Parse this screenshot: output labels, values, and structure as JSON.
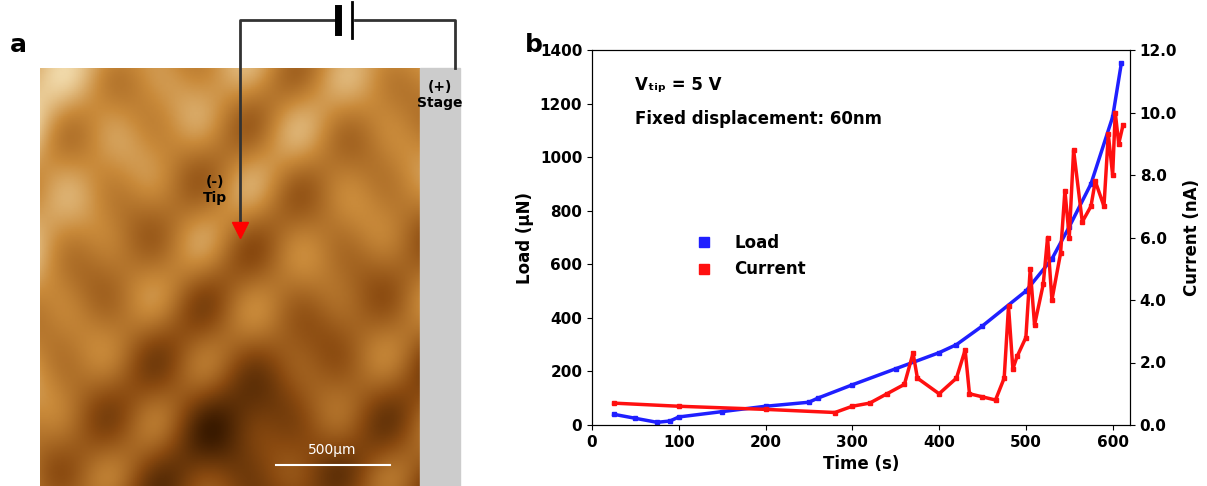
{
  "image_panel": {
    "panel_label": "a",
    "tip_polarity": "(-)",
    "tip_label": "Tip",
    "stage_polarity": "(+)",
    "stage_label": "Stage",
    "scale_bar": "500μm"
  },
  "chart_data": {
    "type": "line",
    "panel_label": "b",
    "annotations": [
      "Vₜᵢₚ = 5 V",
      "Fixed displacement: 60nm"
    ],
    "x_label": "Time (s)",
    "y_label": "Load (μN)",
    "y2_label": "Current (nA)",
    "xlim": [
      0,
      620
    ],
    "xticks": [
      0,
      100,
      200,
      300,
      400,
      500,
      600
    ],
    "ylim": [
      0,
      1400
    ],
    "yticks": [
      0,
      200,
      400,
      600,
      800,
      1000,
      1200,
      1400
    ],
    "y2lim": [
      0,
      12
    ],
    "y2ticks": [
      {
        "value": 0,
        "label": "0.0"
      },
      {
        "value": 2,
        "label": "2.0"
      },
      {
        "value": 4,
        "label": "4.0"
      },
      {
        "value": 6,
        "label": "6.0"
      },
      {
        "value": 8,
        "label": "8.0"
      },
      {
        "value": 10,
        "label": "10.0"
      },
      {
        "value": 12,
        "label": "12.0"
      }
    ],
    "legend": "center left",
    "series": [
      {
        "name": "Load",
        "color": "#1f1fff",
        "marker": "s",
        "axis": "y",
        "x": [
          25,
          50,
          75,
          90,
          100,
          150,
          200,
          250,
          260,
          300,
          350,
          400,
          420,
          450,
          500,
          530,
          550,
          575,
          600,
          610
        ],
        "values": [
          40,
          25,
          10,
          15,
          30,
          50,
          70,
          85,
          100,
          150,
          210,
          270,
          300,
          370,
          500,
          620,
          740,
          900,
          1150,
          1350
        ]
      },
      {
        "name": "Current",
        "color": "#ff1010",
        "marker": "s",
        "axis": "y2",
        "x": [
          25,
          100,
          200,
          280,
          300,
          320,
          340,
          360,
          370,
          375,
          400,
          420,
          430,
          435,
          450,
          465,
          475,
          480,
          485,
          490,
          500,
          505,
          510,
          520,
          525,
          530,
          540,
          545,
          550,
          555,
          565,
          575,
          580,
          590,
          595,
          600,
          603,
          607,
          612
        ],
        "values": [
          0.7,
          0.6,
          0.5,
          0.4,
          0.6,
          0.7,
          1.0,
          1.3,
          2.3,
          1.5,
          1.0,
          1.5,
          2.4,
          1.0,
          0.9,
          0.8,
          1.5,
          3.8,
          1.8,
          2.2,
          2.8,
          5.0,
          3.2,
          4.5,
          6.0,
          4.0,
          5.5,
          7.5,
          6.0,
          8.8,
          6.5,
          7.0,
          7.8,
          7.0,
          9.3,
          8.0,
          10.0,
          9.0,
          9.6
        ]
      }
    ]
  }
}
